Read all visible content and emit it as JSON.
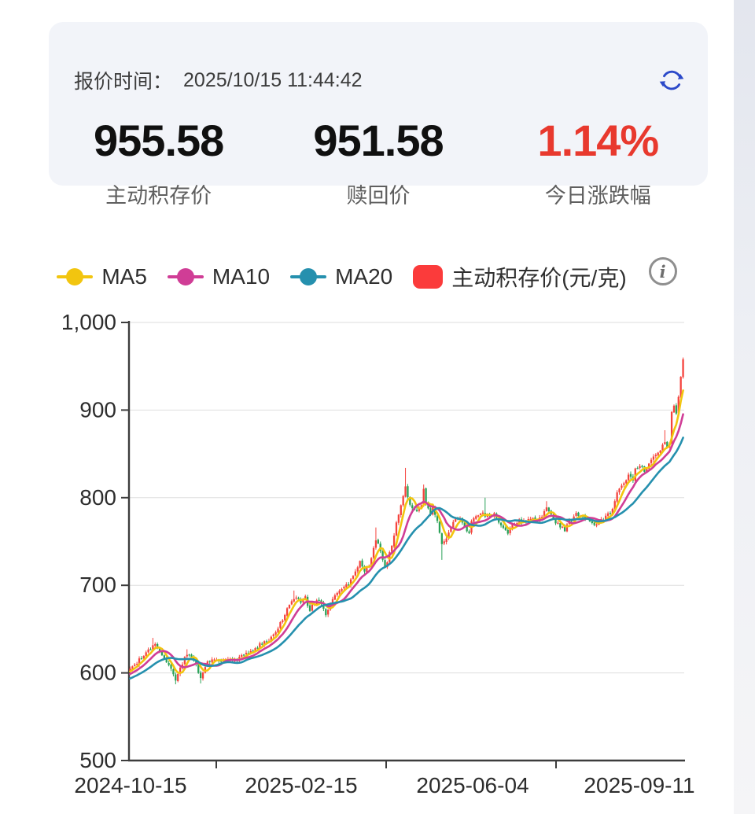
{
  "quote_card": {
    "time_label": "报价时间：",
    "time_value": "2025/10/15 11:44:42",
    "refresh_icon": "refresh-icon",
    "stats": [
      {
        "value": "955.58",
        "label": "主动积存价",
        "color": "#101010"
      },
      {
        "value": "951.58",
        "label": "赎回价",
        "color": "#101010"
      },
      {
        "value": "1.14%",
        "label": "今日涨跌幅",
        "color": "#e8392e"
      }
    ]
  },
  "legend": {
    "items": [
      {
        "label": "MA5",
        "color": "#f2c50f",
        "marker": "line-dot"
      },
      {
        "label": "MA10",
        "color": "#d03d96",
        "marker": "line-dot"
      },
      {
        "label": "MA20",
        "color": "#2590ae",
        "marker": "line-dot"
      },
      {
        "label": "主动积存价(元/克)",
        "color": "#fb3b3b",
        "marker": "rounded-square"
      }
    ],
    "info_icon": "info-icon"
  },
  "chart_data": {
    "type": "candlestick",
    "title": "主动积存价(元/克)",
    "ylim": [
      500,
      1000
    ],
    "y_tick_values": [
      1000,
      900,
      800,
      700,
      600,
      500
    ],
    "y_tick_labels": [
      "1,000",
      "900",
      "800",
      "700",
      "600",
      "500"
    ],
    "x_tick_labels": [
      "2024-10-15",
      "2025-02-15",
      "2025-06-04",
      "2025-09-11"
    ],
    "n_points": 244,
    "grid": true,
    "legend_position": "top",
    "up_color": "#f5433d",
    "down_color": "#2aa258",
    "axis_color": "#3d3d3d",
    "grid_color": "#dedede",
    "series": [
      {
        "name": "MA5",
        "type": "line",
        "period": 5,
        "color": "#f2c50f"
      },
      {
        "name": "MA10",
        "type": "line",
        "period": 10,
        "color": "#d03d96"
      },
      {
        "name": "MA20",
        "type": "line",
        "period": 20,
        "color": "#2590ae"
      },
      {
        "name": "主动积存价(元/克)",
        "type": "candlestick"
      }
    ],
    "close_anchors": [
      [
        0,
        604
      ],
      [
        3,
        612
      ],
      [
        7,
        622
      ],
      [
        10,
        630
      ],
      [
        11,
        632
      ],
      [
        14,
        618
      ],
      [
        17,
        610
      ],
      [
        20,
        593
      ],
      [
        22,
        605
      ],
      [
        25,
        622
      ],
      [
        27,
        618
      ],
      [
        29,
        608
      ],
      [
        31,
        595
      ],
      [
        32,
        600
      ],
      [
        34,
        612
      ],
      [
        36,
        616
      ],
      [
        40,
        614
      ],
      [
        43,
        617
      ],
      [
        47,
        615
      ],
      [
        50,
        620
      ],
      [
        54,
        626
      ],
      [
        57,
        632
      ],
      [
        61,
        638
      ],
      [
        63,
        644
      ],
      [
        65,
        652
      ],
      [
        67,
        662
      ],
      [
        69,
        674
      ],
      [
        71,
        682
      ],
      [
        73,
        687
      ],
      [
        75,
        681
      ],
      [
        77,
        686
      ],
      [
        79,
        669
      ],
      [
        80,
        678
      ],
      [
        82,
        684
      ],
      [
        84,
        679
      ],
      [
        86,
        666
      ],
      [
        88,
        678
      ],
      [
        90,
        688
      ],
      [
        93,
        695
      ],
      [
        96,
        701
      ],
      [
        98,
        712
      ],
      [
        100,
        722
      ],
      [
        101,
        728
      ],
      [
        103,
        714
      ],
      [
        105,
        722
      ],
      [
        106,
        733
      ],
      [
        108,
        752
      ],
      [
        110,
        740
      ],
      [
        112,
        718
      ],
      [
        114,
        736
      ],
      [
        116,
        758
      ],
      [
        117,
        770
      ],
      [
        118,
        780
      ],
      [
        119,
        790
      ],
      [
        120,
        801
      ],
      [
        121,
        814
      ],
      [
        122,
        800
      ],
      [
        124,
        788
      ],
      [
        126,
        786
      ],
      [
        128,
        792
      ],
      [
        129,
        808
      ],
      [
        130,
        794
      ],
      [
        132,
        781
      ],
      [
        133,
        788
      ],
      [
        135,
        775
      ],
      [
        136,
        760
      ],
      [
        137,
        748
      ],
      [
        139,
        755
      ],
      [
        141,
        768
      ],
      [
        143,
        775
      ],
      [
        145,
        778
      ],
      [
        147,
        765
      ],
      [
        149,
        760
      ],
      [
        150,
        772
      ],
      [
        152,
        780
      ],
      [
        155,
        782
      ],
      [
        157,
        778
      ],
      [
        160,
        782
      ],
      [
        162,
        772
      ],
      [
        164,
        766
      ],
      [
        166,
        758
      ],
      [
        168,
        770
      ],
      [
        171,
        774
      ],
      [
        173,
        772
      ],
      [
        176,
        776
      ],
      [
        179,
        773
      ],
      [
        181,
        778
      ],
      [
        183,
        790
      ],
      [
        185,
        780
      ],
      [
        187,
        772
      ],
      [
        189,
        768
      ],
      [
        191,
        763
      ],
      [
        193,
        772
      ],
      [
        196,
        782
      ],
      [
        198,
        779
      ],
      [
        200,
        775
      ],
      [
        202,
        774
      ],
      [
        204,
        770
      ],
      [
        207,
        774
      ],
      [
        209,
        778
      ],
      [
        211,
        782
      ],
      [
        212,
        788
      ],
      [
        214,
        805
      ],
      [
        217,
        818
      ],
      [
        219,
        825
      ],
      [
        221,
        820
      ],
      [
        222,
        832
      ],
      [
        224,
        838
      ],
      [
        226,
        830
      ],
      [
        227,
        835
      ],
      [
        229,
        842
      ],
      [
        231,
        848
      ],
      [
        233,
        855
      ],
      [
        235,
        864
      ],
      [
        236,
        856
      ],
      [
        237,
        862
      ],
      [
        238,
        898
      ],
      [
        239,
        905
      ],
      [
        240,
        896
      ],
      [
        241,
        915
      ],
      [
        242,
        938
      ],
      [
        243,
        958
      ]
    ],
    "wick_overrides": [
      [
        10,
        640,
        null
      ],
      [
        20,
        null,
        587
      ],
      [
        25,
        627,
        null
      ],
      [
        31,
        null,
        588
      ],
      [
        72,
        694,
        null
      ],
      [
        108,
        766,
        null
      ],
      [
        110,
        750,
        null
      ],
      [
        121,
        834,
        null
      ],
      [
        129,
        815,
        null
      ],
      [
        137,
        null,
        729
      ],
      [
        156,
        800,
        null
      ],
      [
        183,
        796,
        null
      ],
      [
        235,
        877,
        null
      ],
      [
        243,
        960,
        null
      ]
    ],
    "warmup_closes": [
      578,
      579,
      580,
      581,
      582,
      583,
      584,
      585,
      586,
      587,
      588,
      589,
      590,
      591,
      592,
      593,
      594,
      595,
      596,
      597,
      598,
      599,
      600,
      601,
      603
    ]
  }
}
